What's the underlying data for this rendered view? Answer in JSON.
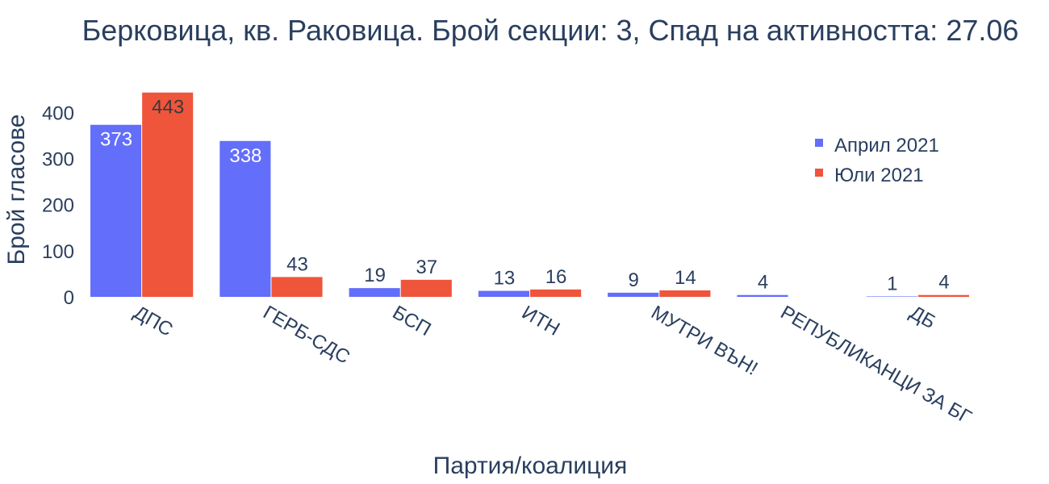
{
  "chart_data": {
    "type": "bar",
    "title": "Берковица, кв. Раковица. Брой секции: 3,  Спад на активността: 27.06",
    "xlabel": "Партия/коалиция",
    "ylabel": "Брой гласове",
    "categories": [
      "ДПС",
      "ГЕРБ-СДС",
      "БСП",
      "ИТН",
      "МУТРИ ВЪН!",
      "РЕПУБЛИКАНЦИ ЗА БГ",
      "ДБ"
    ],
    "series": [
      {
        "name": "Април 2021",
        "color": "#636efa",
        "values": [
          373,
          338,
          19,
          13,
          9,
          4,
          1
        ]
      },
      {
        "name": "Юли 2021",
        "color": "#ef553b",
        "values": [
          443,
          43,
          37,
          16,
          14,
          null,
          4
        ]
      }
    ],
    "ylim": [
      0,
      460
    ],
    "yticks": [
      0,
      100,
      200,
      300,
      400
    ],
    "grid": false,
    "legend_position": "top-right"
  }
}
